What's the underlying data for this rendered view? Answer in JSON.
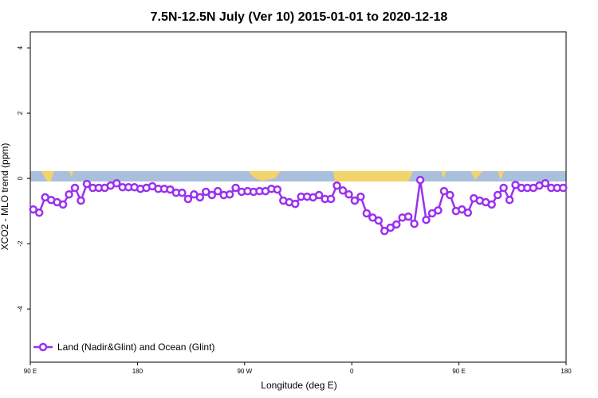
{
  "chart_data": {
    "type": "line",
    "title": "7.5N-12.5N July (Ver 10)   2015-01-01 to 2020-12-18",
    "x_label": "Longitude (deg E)",
    "y_label": "XCO2 - MLO trend (ppm)",
    "x": [
      92.5,
      97.5,
      102.5,
      107.5,
      112.5,
      117.5,
      122.5,
      127.5,
      132.5,
      137.5,
      142.5,
      147.5,
      152.5,
      157.5,
      162.5,
      167.5,
      172.5,
      177.5,
      182.5,
      187.5,
      192.5,
      197.5,
      202.5,
      207.5,
      212.5,
      217.5,
      222.5,
      227.5,
      232.5,
      237.5,
      242.5,
      247.5,
      252.5,
      257.5,
      262.5,
      267.5,
      272.5,
      277.5,
      282.5,
      287.5,
      292.5,
      297.5,
      302.5,
      307.5,
      312.5,
      317.5,
      322.5,
      327.5,
      332.5,
      337.5,
      342.5,
      347.5,
      352.5,
      357.5,
      362.5,
      367.5,
      372.5,
      377.5,
      382.5,
      387.5,
      392.5,
      397.5,
      402.5,
      407.5,
      412.5,
      417.5,
      422.5,
      427.5,
      432.5,
      437.5,
      442.5,
      447.5,
      452.5,
      457.5,
      462.5,
      467.5,
      472.5,
      477.5,
      482.5,
      487.5,
      492.5,
      497.5,
      502.5,
      507.5,
      512.5,
      517.5,
      522.5,
      527.5,
      532.5,
      537.5
    ],
    "series": [
      {
        "name": "Land (Nadir&Glint) and Ocean (Glint)",
        "color": "#9b30f0",
        "values": [
          -0.95,
          -1.05,
          -0.58,
          -0.66,
          -0.73,
          -0.8,
          -0.49,
          -0.29,
          -0.68,
          -0.17,
          -0.29,
          -0.29,
          -0.29,
          -0.22,
          -0.15,
          -0.27,
          -0.27,
          -0.27,
          -0.32,
          -0.29,
          -0.24,
          -0.32,
          -0.32,
          -0.34,
          -0.44,
          -0.44,
          -0.63,
          -0.49,
          -0.58,
          -0.41,
          -0.51,
          -0.39,
          -0.51,
          -0.49,
          -0.29,
          -0.41,
          -0.39,
          -0.41,
          -0.39,
          -0.39,
          -0.32,
          -0.34,
          -0.68,
          -0.73,
          -0.78,
          -0.56,
          -0.56,
          -0.58,
          -0.51,
          -0.63,
          -0.63,
          -0.22,
          -0.37,
          -0.49,
          -0.68,
          -0.56,
          -1.07,
          -1.2,
          -1.29,
          -1.61,
          -1.51,
          -1.41,
          -1.2,
          -1.17,
          -1.39,
          -0.05,
          -1.27,
          -1.07,
          -0.98,
          -0.39,
          -0.51,
          -1.0,
          -0.95,
          -1.05,
          -0.61,
          -0.68,
          -0.73,
          -0.8,
          -0.51,
          -0.29,
          -0.66,
          -0.2,
          -0.29,
          -0.29,
          -0.29,
          -0.22,
          -0.15,
          -0.29,
          -0.29,
          -0.29
        ]
      }
    ],
    "xlim": [
      90,
      540
    ],
    "xticks": [
      {
        "value": 90,
        "label": "90 E"
      },
      {
        "value": 180,
        "label": "180"
      },
      {
        "value": 270,
        "label": "90 W"
      },
      {
        "value": 360,
        "label": "0"
      },
      {
        "value": 450,
        "label": "90 E"
      },
      {
        "value": 540,
        "label": "180"
      }
    ],
    "ylim": [
      -5.63,
      4.49
    ],
    "yticks": [
      -4,
      -2,
      0,
      2,
      4
    ],
    "legend": "bottom-left"
  }
}
